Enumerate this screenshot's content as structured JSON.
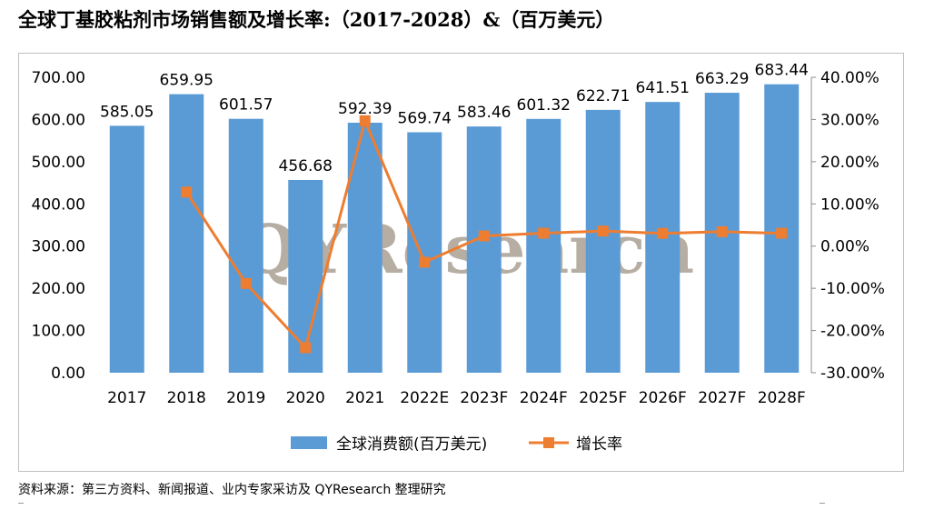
{
  "title": "全球丁基胶粘剂市场销售额及增长率:（2017-2028）&（百万美元）",
  "source": "资料来源：第三方资料、新闻报道、业内专家采访及 QYResearch 整理研究",
  "watermark": "QYResearch",
  "colors": {
    "bar": "#5b9bd5",
    "line": "#ed7d31",
    "axis_text": "#000000",
    "frame": "#bfbfbf"
  },
  "chart_data": {
    "type": "bar",
    "categories": [
      "2017",
      "2018",
      "2019",
      "2020",
      "2021",
      "2022E",
      "2023F",
      "2024F",
      "2025F",
      "2026F",
      "2027F",
      "2028F"
    ],
    "series": [
      {
        "name": "全球消费额(百万美元)",
        "type": "bar",
        "axis": "left",
        "values": [
          585.05,
          659.95,
          601.57,
          456.68,
          592.39,
          569.74,
          583.46,
          601.32,
          622.71,
          641.51,
          663.29,
          683.44
        ],
        "labels": [
          "585.05",
          "659.95",
          "601.57",
          "456.68",
          "592.39",
          "569.74",
          "583.46",
          "601.32",
          "622.71",
          "641.51",
          "663.29",
          "683.44"
        ]
      },
      {
        "name": "增长率",
        "type": "line",
        "axis": "right",
        "values": [
          null,
          12.8,
          -8.85,
          -24.08,
          29.71,
          -3.82,
          2.41,
          3.06,
          3.56,
          3.02,
          3.4,
          3.04
        ]
      }
    ],
    "y_left": {
      "min": 0,
      "max": 700,
      "step": 100,
      "ticks": [
        "0.00",
        "100.00",
        "200.00",
        "300.00",
        "400.00",
        "500.00",
        "600.00",
        "700.00"
      ]
    },
    "y_right": {
      "min": -30,
      "max": 40,
      "step": 10,
      "ticks": [
        "-30.00%",
        "-20.00%",
        "-10.00%",
        "0.00%",
        "10.00%",
        "20.00%",
        "30.00%",
        "40.00%"
      ]
    },
    "grid": false,
    "legend_position": "bottom"
  }
}
